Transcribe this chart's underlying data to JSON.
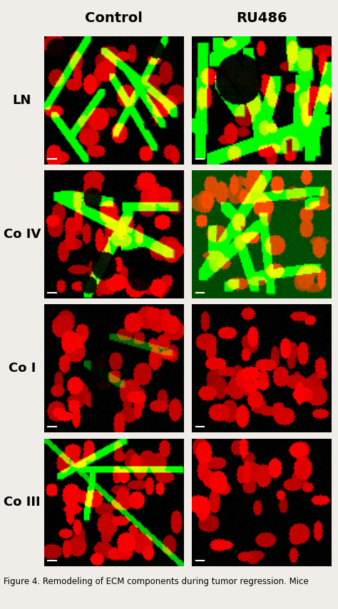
{
  "title": "Figure 4. Remodeling of ECM components during tumor regression. Mice",
  "col_headers": [
    "Control",
    "RU486"
  ],
  "row_labels": [
    "LN",
    "Co IV",
    "Co I",
    "Co III"
  ],
  "bg_color": "#f0ede8",
  "fig_width": 4.74,
  "fig_height": 8.55,
  "n_rows": 4,
  "n_cols": 2,
  "caption": "Figure 4. Remodeling of ECM components during tumor regression. Mice",
  "col_header_fontsize": 14,
  "row_label_fontsize": 13,
  "caption_fontsize": 8.5
}
